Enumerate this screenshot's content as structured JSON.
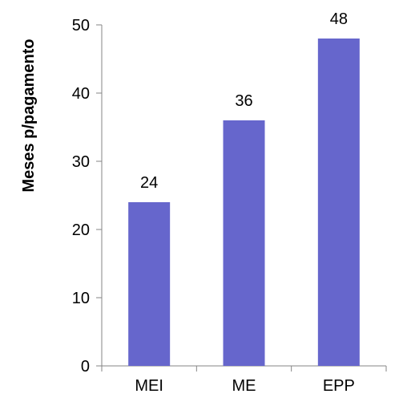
{
  "chart_data": {
    "type": "bar",
    "title": "",
    "xlabel": "",
    "ylabel": "Meses p/pagamento",
    "categories": [
      "MEI",
      "ME",
      "EPP"
    ],
    "values": [
      24,
      36,
      48
    ],
    "data_labels": [
      "24",
      "36",
      "48"
    ],
    "ylim": [
      0,
      50
    ],
    "yticks": [
      0,
      10,
      20,
      30,
      40,
      50
    ],
    "grid": false,
    "legend": "none",
    "bar_color": "#6666CC",
    "axis_color": "#868686"
  }
}
